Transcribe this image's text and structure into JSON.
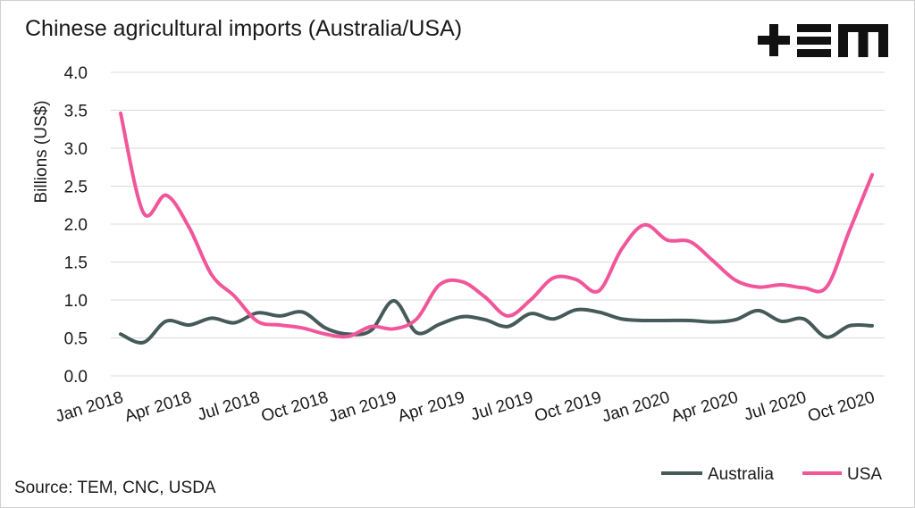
{
  "logo": {
    "text": "+EM",
    "icon": "tem-logo-icon",
    "color": "#111111"
  },
  "source": "Source: TEM, CNC, USDA",
  "chart_data": {
    "type": "line",
    "title": "Chinese agricultural imports (Australia/USA)",
    "ylabel": "Billions (US$)",
    "xlabel": "",
    "ylim": [
      0,
      4
    ],
    "yticks": [
      "0.0",
      "0.5",
      "1.0",
      "1.5",
      "2.0",
      "2.5",
      "3.0",
      "3.5",
      "4.0"
    ],
    "xtick_labels": [
      "Jan 2018",
      "Apr 2018",
      "Jul 2018",
      "Oct 2018",
      "Jan 2019",
      "Apr 2019",
      "Jul 2019",
      "Oct 2019",
      "Jan 2020",
      "Apr 2020",
      "Jul 2020",
      "Oct 2020"
    ],
    "x": [
      "Jan 2018",
      "Feb 2018",
      "Mar 2018",
      "Apr 2018",
      "May 2018",
      "Jun 2018",
      "Jul 2018",
      "Aug 2018",
      "Sep 2018",
      "Oct 2018",
      "Nov 2018",
      "Dec 2018",
      "Jan 2019",
      "Feb 2019",
      "Mar 2019",
      "Apr 2019",
      "May 2019",
      "Jun 2019",
      "Jul 2019",
      "Aug 2019",
      "Sep 2019",
      "Oct 2019",
      "Nov 2019",
      "Dec 2019",
      "Jan 2020",
      "Feb 2020",
      "Mar 2020",
      "Apr 2020",
      "May 2020",
      "Jun 2020",
      "Jul 2020",
      "Aug 2020",
      "Sep 2020",
      "Oct 2020"
    ],
    "grid": true,
    "legend": "bottom-right",
    "series": [
      {
        "name": "Australia",
        "color": "#465a5a",
        "values": [
          0.55,
          0.44,
          0.72,
          0.67,
          0.76,
          0.7,
          0.83,
          0.79,
          0.84,
          0.63,
          0.55,
          0.6,
          0.99,
          0.57,
          0.68,
          0.78,
          0.74,
          0.65,
          0.82,
          0.75,
          0.87,
          0.84,
          0.75,
          0.73,
          0.73,
          0.73,
          0.71,
          0.74,
          0.86,
          0.72,
          0.75,
          0.51,
          0.66,
          0.66
        ]
      },
      {
        "name": "USA",
        "color": "#f2569a",
        "values": [
          3.46,
          2.15,
          2.38,
          1.96,
          1.33,
          1.05,
          0.72,
          0.67,
          0.63,
          0.55,
          0.52,
          0.65,
          0.62,
          0.75,
          1.2,
          1.24,
          1.04,
          0.79,
          1.0,
          1.29,
          1.27,
          1.12,
          1.67,
          1.99,
          1.79,
          1.77,
          1.52,
          1.26,
          1.17,
          1.2,
          1.16,
          1.17,
          1.91,
          2.65
        ]
      }
    ]
  }
}
